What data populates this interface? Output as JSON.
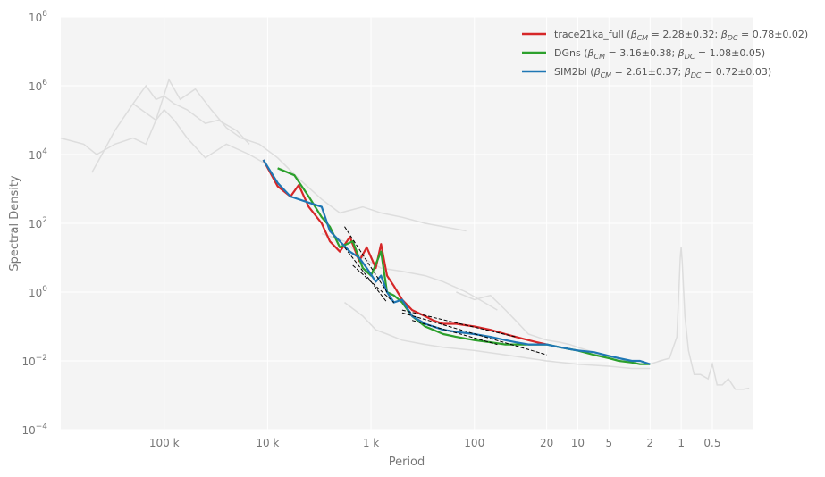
{
  "chart_data": {
    "type": "line",
    "title": "",
    "xlabel": "Period",
    "ylabel": "Spectral Density",
    "xscale": "reciprocal (frequency, log), period decreasing to the right",
    "yscale": "log",
    "xlim_period": [
      1000000,
      0.2
    ],
    "ylim": [
      0.0001,
      100000000
    ],
    "grid": true,
    "legend_placement": "top-right",
    "x_ticks": [
      {
        "period": 100000,
        "label": "100 k"
      },
      {
        "period": 10000,
        "label": "10 k"
      },
      {
        "period": 1000,
        "label": "1 k"
      },
      {
        "period": 100,
        "label": "100"
      },
      {
        "period": 20,
        "label": "20"
      },
      {
        "period": 10,
        "label": "10"
      },
      {
        "period": 5,
        "label": "5"
      },
      {
        "period": 2,
        "label": "2"
      },
      {
        "period": 1,
        "label": "1"
      },
      {
        "period": 0.5,
        "label": "0.5"
      }
    ],
    "y_ticks": [
      {
        "value": 0.0001,
        "base": "10",
        "exp": "−4"
      },
      {
        "value": 0.01,
        "base": "10",
        "exp": "−2"
      },
      {
        "value": 1,
        "base": "10",
        "exp": "0"
      },
      {
        "value": 100,
        "base": "10",
        "exp": "2"
      },
      {
        "value": 10000,
        "base": "10",
        "exp": "4"
      },
      {
        "value": 1000000,
        "base": "10",
        "exp": "6"
      },
      {
        "value": 100000000,
        "base": "10",
        "exp": "8"
      }
    ],
    "background_series": [
      {
        "color": "#dddddd",
        "points": [
          [
            1000000,
            30000
          ],
          [
            600000,
            20000
          ],
          [
            450000,
            10000
          ],
          [
            300000,
            20000
          ],
          [
            200000,
            30000
          ],
          [
            150000,
            20000
          ],
          [
            120000,
            100000
          ],
          [
            100000,
            200000
          ],
          [
            80000,
            100000
          ],
          [
            60000,
            30000
          ],
          [
            40000,
            8000
          ],
          [
            25000,
            20000
          ],
          [
            15000,
            10000
          ],
          [
            10000,
            5000
          ]
        ]
      },
      {
        "color": "#dddddd",
        "points": [
          [
            500000,
            3000
          ],
          [
            400000,
            10000
          ],
          [
            300000,
            50000
          ],
          [
            200000,
            300000
          ],
          [
            150000,
            1000000
          ],
          [
            120000,
            400000
          ],
          [
            100000,
            500000
          ],
          [
            80000,
            300000
          ],
          [
            60000,
            200000
          ],
          [
            40000,
            80000
          ],
          [
            30000,
            100000
          ],
          [
            20000,
            50000
          ],
          [
            15000,
            20000
          ]
        ]
      },
      {
        "color": "#dddddd",
        "points": [
          [
            200000,
            300000
          ],
          [
            120000,
            100000
          ],
          [
            90000,
            1500000
          ],
          [
            70000,
            400000
          ],
          [
            50000,
            800000
          ],
          [
            35000,
            200000
          ],
          [
            25000,
            60000
          ],
          [
            18000,
            30000
          ],
          [
            12000,
            20000
          ],
          [
            8000,
            8000
          ],
          [
            5000,
            2000
          ],
          [
            3000,
            500
          ],
          [
            2000,
            200
          ],
          [
            1200,
            300
          ],
          [
            800,
            200
          ],
          [
            500,
            150
          ],
          [
            300,
            100
          ],
          [
            200,
            80
          ],
          [
            120,
            60
          ]
        ]
      },
      {
        "color": "#dddddd",
        "points": [
          [
            3000,
            50
          ],
          [
            1800,
            30
          ],
          [
            1200,
            10
          ],
          [
            800,
            5
          ],
          [
            500,
            4
          ],
          [
            300,
            3
          ],
          [
            200,
            2
          ],
          [
            120,
            1
          ],
          [
            80,
            0.5
          ],
          [
            60,
            0.3
          ]
        ]
      },
      {
        "color": "#dddddd",
        "points": [
          [
            1800,
            0.5
          ],
          [
            1200,
            0.2
          ],
          [
            900,
            0.08
          ],
          [
            700,
            0.06
          ],
          [
            500,
            0.04
          ],
          [
            300,
            0.03
          ],
          [
            200,
            0.025
          ],
          [
            100,
            0.02
          ],
          [
            50,
            0.015
          ],
          [
            30,
            0.012
          ],
          [
            20,
            0.01
          ],
          [
            10,
            0.008
          ],
          [
            5,
            0.007
          ],
          [
            3,
            0.006
          ],
          [
            2,
            0.006
          ]
        ]
      },
      {
        "color": "#dddddd",
        "points": [
          [
            150,
            1
          ],
          [
            100,
            0.6
          ],
          [
            70,
            0.8
          ],
          [
            50,
            0.3
          ],
          [
            40,
            0.15
          ],
          [
            30,
            0.06
          ],
          [
            25,
            0.05
          ],
          [
            20,
            0.04
          ],
          [
            15,
            0.035
          ],
          [
            12,
            0.03
          ],
          [
            10,
            0.025
          ],
          [
            8,
            0.02
          ],
          [
            6,
            0.015
          ],
          [
            5,
            0.012
          ],
          [
            4,
            0.01
          ],
          [
            3,
            0.009
          ],
          [
            2.5,
            0.008
          ]
        ]
      },
      {
        "color": "#dddddd",
        "points": [
          [
            2,
            0.008
          ],
          [
            1.6,
            0.01
          ],
          [
            1.3,
            0.012
          ],
          [
            1.1,
            0.05
          ],
          [
            1.02,
            10
          ],
          [
            1,
            20
          ],
          [
            0.98,
            8
          ],
          [
            0.92,
            0.2
          ],
          [
            0.85,
            0.02
          ],
          [
            0.75,
            0.004
          ],
          [
            0.65,
            0.004
          ],
          [
            0.55,
            0.003
          ],
          [
            0.5,
            0.008
          ],
          [
            0.45,
            0.002
          ],
          [
            0.4,
            0.002
          ],
          [
            0.35,
            0.003
          ],
          [
            0.3,
            0.0015
          ],
          [
            0.25,
            0.0015
          ],
          [
            0.22,
            0.0016
          ]
        ]
      }
    ],
    "series": [
      {
        "name": "trace21ka_full",
        "beta_cm": "2.28±0.32",
        "beta_dc": "0.78±0.02",
        "color": "#d62728",
        "points": [
          [
            11000,
            7000
          ],
          [
            8000,
            1200
          ],
          [
            6000,
            600
          ],
          [
            5000,
            1300
          ],
          [
            4000,
            300
          ],
          [
            3000,
            100
          ],
          [
            2500,
            30
          ],
          [
            2000,
            15
          ],
          [
            1600,
            40
          ],
          [
            1300,
            8
          ],
          [
            1100,
            20
          ],
          [
            900,
            5
          ],
          [
            800,
            25
          ],
          [
            700,
            3
          ],
          [
            600,
            1.5
          ],
          [
            500,
            0.6
          ],
          [
            400,
            0.3
          ],
          [
            300,
            0.2
          ],
          [
            250,
            0.15
          ],
          [
            200,
            0.12
          ],
          [
            150,
            0.12
          ],
          [
            100,
            0.1
          ],
          [
            70,
            0.08
          ],
          [
            50,
            0.06
          ],
          [
            40,
            0.05
          ],
          [
            30,
            0.04
          ],
          [
            25,
            0.035
          ],
          [
            20,
            0.03
          ]
        ]
      },
      {
        "name": "DGns",
        "beta_cm": "3.16±0.38",
        "beta_dc": "1.08±0.05",
        "color": "#2ca02c",
        "points": [
          [
            8000,
            4000
          ],
          [
            5500,
            2500
          ],
          [
            4000,
            600
          ],
          [
            3000,
            150
          ],
          [
            2500,
            80
          ],
          [
            2000,
            20
          ],
          [
            1500,
            30
          ],
          [
            1200,
            5
          ],
          [
            1000,
            3
          ],
          [
            800,
            15
          ],
          [
            700,
            1
          ],
          [
            600,
            0.8
          ],
          [
            500,
            0.5
          ],
          [
            400,
            0.2
          ],
          [
            300,
            0.1
          ],
          [
            250,
            0.08
          ],
          [
            200,
            0.06
          ],
          [
            150,
            0.05
          ],
          [
            100,
            0.04
          ],
          [
            70,
            0.035
          ],
          [
            50,
            0.03
          ],
          [
            30,
            0.03
          ],
          [
            20,
            0.03
          ],
          [
            15,
            0.025
          ],
          [
            10,
            0.02
          ],
          [
            7,
            0.015
          ],
          [
            5,
            0.012
          ],
          [
            4,
            0.01
          ],
          [
            3,
            0.009
          ],
          [
            2.5,
            0.008
          ],
          [
            2,
            0.008
          ]
        ]
      },
      {
        "name": "SIM2bl",
        "beta_cm": "2.61±0.37",
        "beta_dc": "0.72±0.03",
        "color": "#1f77b4",
        "points": [
          [
            11000,
            7000
          ],
          [
            8000,
            1500
          ],
          [
            6000,
            600
          ],
          [
            4000,
            400
          ],
          [
            3000,
            300
          ],
          [
            2500,
            60
          ],
          [
            2000,
            30
          ],
          [
            1600,
            15
          ],
          [
            1300,
            10
          ],
          [
            1100,
            5
          ],
          [
            900,
            2
          ],
          [
            800,
            3
          ],
          [
            700,
            1
          ],
          [
            600,
            0.5
          ],
          [
            500,
            0.6
          ],
          [
            400,
            0.2
          ],
          [
            300,
            0.12
          ],
          [
            200,
            0.08
          ],
          [
            150,
            0.07
          ],
          [
            100,
            0.06
          ],
          [
            70,
            0.05
          ],
          [
            50,
            0.04
          ],
          [
            40,
            0.035
          ],
          [
            30,
            0.03
          ],
          [
            20,
            0.03
          ],
          [
            15,
            0.025
          ],
          [
            10,
            0.02
          ],
          [
            7,
            0.018
          ],
          [
            5,
            0.014
          ],
          [
            4,
            0.012
          ],
          [
            3,
            0.01
          ],
          [
            2.5,
            0.01
          ],
          [
            2,
            0.008
          ]
        ]
      }
    ],
    "fit_lines": [
      {
        "color": "#000000",
        "points": [
          [
            1800,
            80
          ],
          [
            700,
            1
          ]
        ]
      },
      {
        "color": "#000000",
        "points": [
          [
            1800,
            20
          ],
          [
            700,
            0.5
          ]
        ]
      },
      {
        "color": "#000000",
        "points": [
          [
            1500,
            6
          ],
          [
            600,
            0.5
          ]
        ]
      },
      {
        "color": "#000000",
        "points": [
          [
            500,
            0.25
          ],
          [
            20,
            0.015
          ]
        ]
      },
      {
        "color": "#000000",
        "points": [
          [
            500,
            0.3
          ],
          [
            40,
            0.05
          ]
        ]
      },
      {
        "color": "#000000",
        "points": [
          [
            400,
            0.15
          ],
          [
            60,
            0.03
          ]
        ]
      }
    ]
  }
}
